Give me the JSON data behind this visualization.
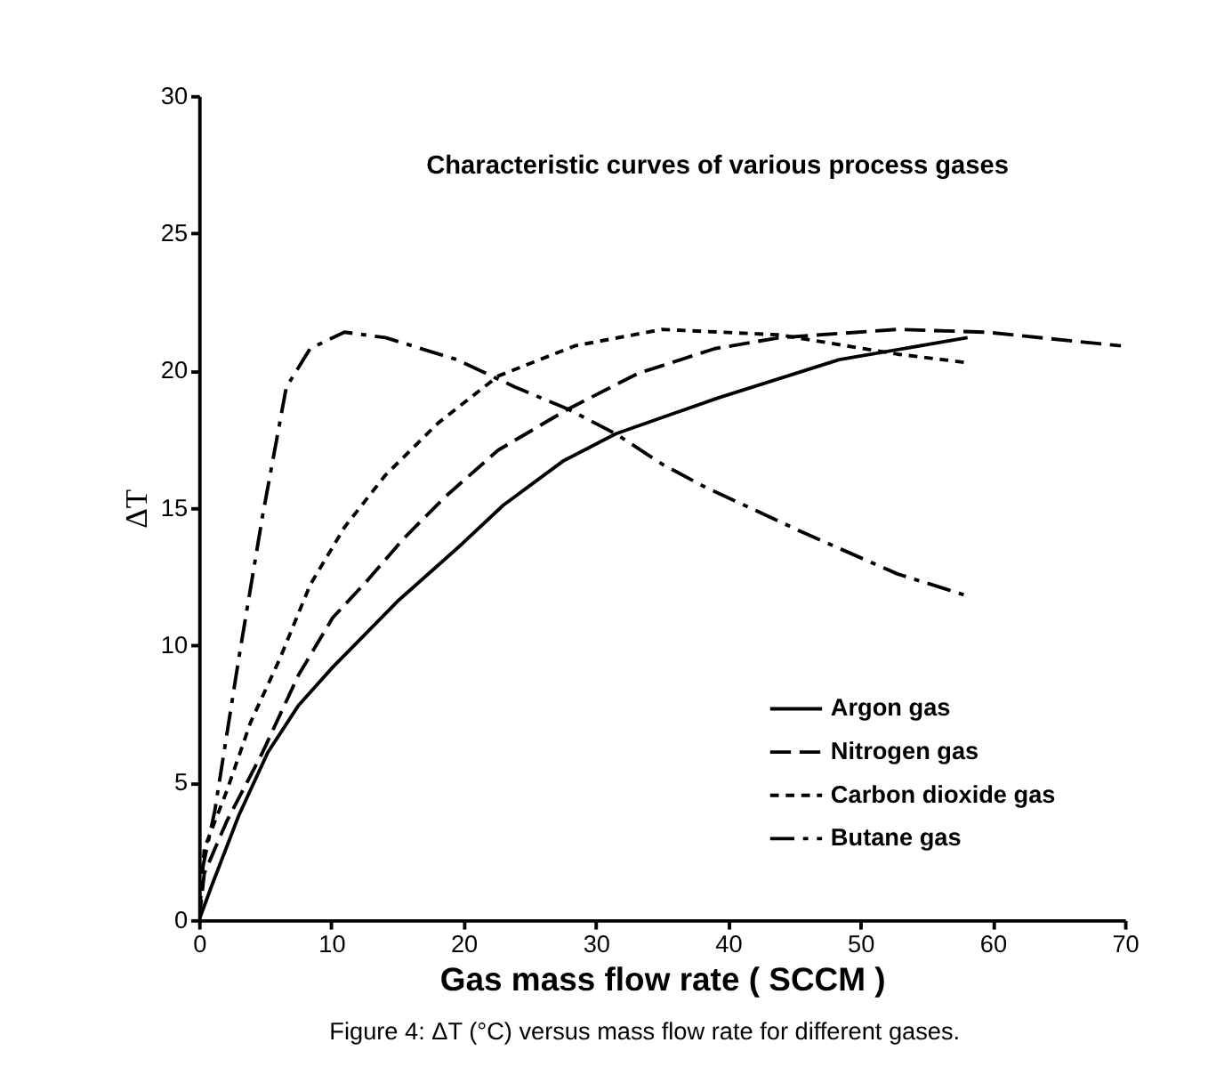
{
  "chart_data": {
    "type": "line",
    "title": "Characteristic curves of various process gases",
    "xlabel": "Gas mass flow rate ( SCCM )",
    "ylabel": "ΔT",
    "annotations": [
      "Figure 4: ΔT (°C) versus mass flow rate for different gases."
    ],
    "xlim": [
      0,
      70
    ],
    "ylim": [
      0,
      30
    ],
    "xticks": [
      0,
      10,
      20,
      30,
      40,
      50,
      60,
      70
    ],
    "yticks": [
      0,
      5,
      10,
      15,
      20,
      25,
      30
    ],
    "grid": false,
    "legend": "bottom right",
    "series": [
      {
        "name": "Argon gas",
        "color": "#000000",
        "line_style": "solid",
        "x": [
          0,
          1,
          3,
          5.2,
          7.5,
          10.1,
          15,
          19.9,
          23,
          27.5,
          31.5,
          39.2,
          48.4,
          58.1
        ],
        "values": [
          0,
          1.3,
          3.8,
          6.1,
          7.8,
          9.2,
          11.6,
          13.7,
          15.1,
          16.7,
          17.7,
          19.0,
          20.4,
          21.2
        ]
      },
      {
        "name": "Nitrogen gas",
        "color": "#000000",
        "line_style": "dashed",
        "x": [
          0,
          0.4,
          2.1,
          4.8,
          7.5,
          10.1,
          12.8,
          15.5,
          18.6,
          22.6,
          27.9,
          33.2,
          39,
          43.9,
          52.8,
          59.5,
          69.7
        ],
        "values": [
          0,
          1.7,
          3.6,
          6.1,
          8.9,
          11,
          12.4,
          13.9,
          15.4,
          17.1,
          18.6,
          19.9,
          20.8,
          21.2,
          21.5,
          21.4,
          20.9
        ]
      },
      {
        "name": "Carbon dioxide gas",
        "color": "#000000",
        "line_style": "dotted",
        "x": [
          0,
          0.4,
          2.1,
          3.9,
          6.1,
          8.4,
          11,
          14.1,
          18.1,
          22.6,
          28.4,
          35,
          43.9,
          52.8,
          57.9
        ],
        "values": [
          0,
          2.6,
          4.7,
          7.2,
          9.5,
          12.2,
          14.3,
          16.2,
          18.1,
          19.8,
          20.9,
          21.5,
          21.3,
          20.6,
          20.3
        ]
      },
      {
        "name": "Butane gas",
        "color": "#000000",
        "line_style": "dashdot",
        "x": [
          0,
          0.1,
          1.2,
          3,
          4.8,
          6.6,
          8.4,
          11,
          14.1,
          19.5,
          23.9,
          27.9,
          31.5,
          35,
          38.1,
          45.7,
          52.8,
          58.1
        ],
        "values": [
          0,
          1.5,
          4,
          9.5,
          14.7,
          19.4,
          20.8,
          21.4,
          21.2,
          20.4,
          19.4,
          18.6,
          17.7,
          16.6,
          15.8,
          14.1,
          12.6,
          11.8
        ]
      }
    ]
  }
}
